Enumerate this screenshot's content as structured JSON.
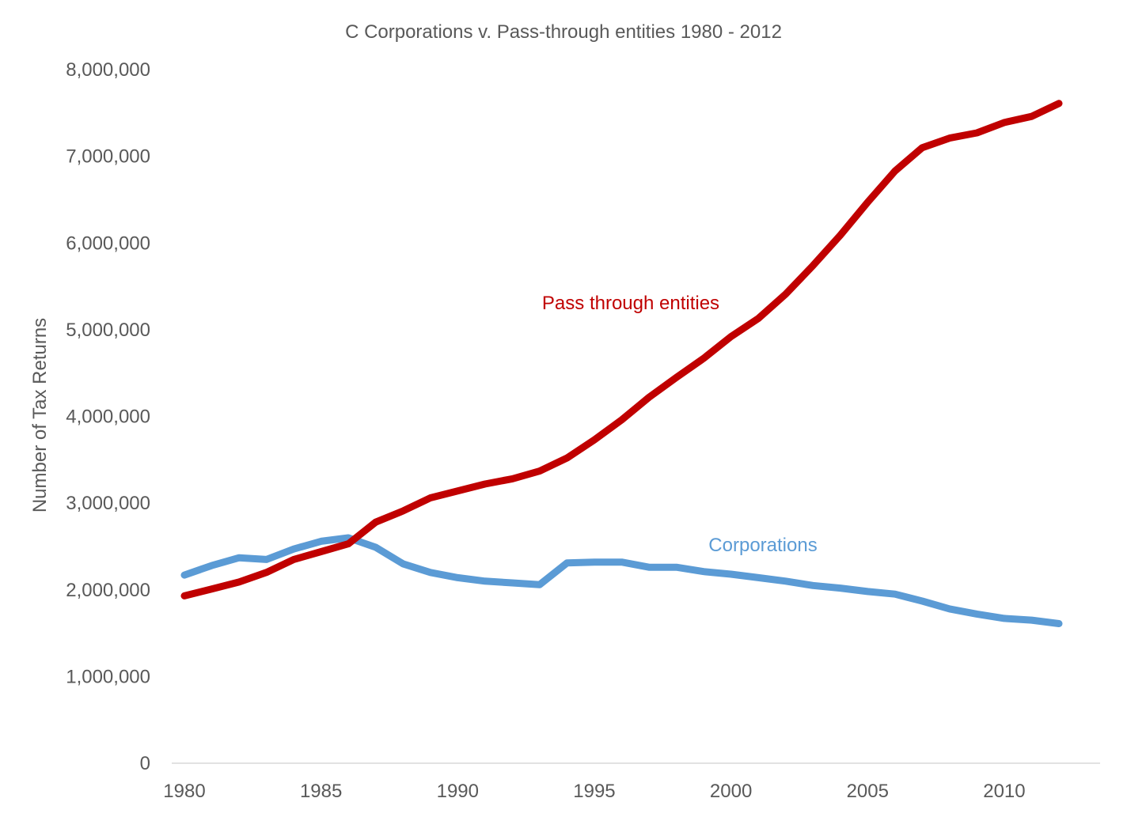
{
  "chart_data": {
    "type": "line",
    "title": "C Corporations v. Pass-through entities 1980 - 2012",
    "xlabel": "",
    "ylabel": "Number of Tax Returns",
    "xlim": [
      1980,
      2012
    ],
    "ylim": [
      0,
      8000000
    ],
    "x_ticks": [
      1980,
      1985,
      1990,
      1995,
      2000,
      2005,
      2010
    ],
    "y_ticks": [
      0,
      1000000,
      2000000,
      3000000,
      4000000,
      5000000,
      6000000,
      7000000,
      8000000
    ],
    "y_tick_labels": [
      "0",
      "1,000,000",
      "2,000,000",
      "3,000,000",
      "4,000,000",
      "5,000,000",
      "6,000,000",
      "7,000,000",
      "8,000,000"
    ],
    "grid": false,
    "legend": "none (inline labels)",
    "x": [
      1980,
      1981,
      1982,
      1983,
      1984,
      1985,
      1986,
      1987,
      1988,
      1989,
      1990,
      1991,
      1992,
      1993,
      1994,
      1995,
      1996,
      1997,
      1998,
      1999,
      2000,
      2001,
      2002,
      2003,
      2004,
      2005,
      2006,
      2007,
      2008,
      2009,
      2010,
      2011,
      2012
    ],
    "series": [
      {
        "name": "Pass through entities",
        "color": "#c00000",
        "values": [
          1930000,
          2010000,
          2090000,
          2200000,
          2350000,
          2440000,
          2530000,
          2780000,
          2910000,
          3060000,
          3140000,
          3220000,
          3280000,
          3370000,
          3520000,
          3730000,
          3960000,
          4220000,
          4450000,
          4670000,
          4920000,
          5130000,
          5410000,
          5740000,
          6090000,
          6470000,
          6830000,
          7100000,
          7210000,
          7270000,
          7390000,
          7460000,
          7610000
        ]
      },
      {
        "name": "Corporations",
        "color": "#5b9bd5",
        "values": [
          2170000,
          2280000,
          2370000,
          2350000,
          2470000,
          2560000,
          2600000,
          2490000,
          2300000,
          2200000,
          2140000,
          2100000,
          2080000,
          2060000,
          2310000,
          2320000,
          2320000,
          2260000,
          2260000,
          2210000,
          2180000,
          2140000,
          2100000,
          2050000,
          2020000,
          1980000,
          1950000,
          1870000,
          1780000,
          1720000,
          1670000,
          1650000,
          1610000
        ]
      }
    ]
  }
}
